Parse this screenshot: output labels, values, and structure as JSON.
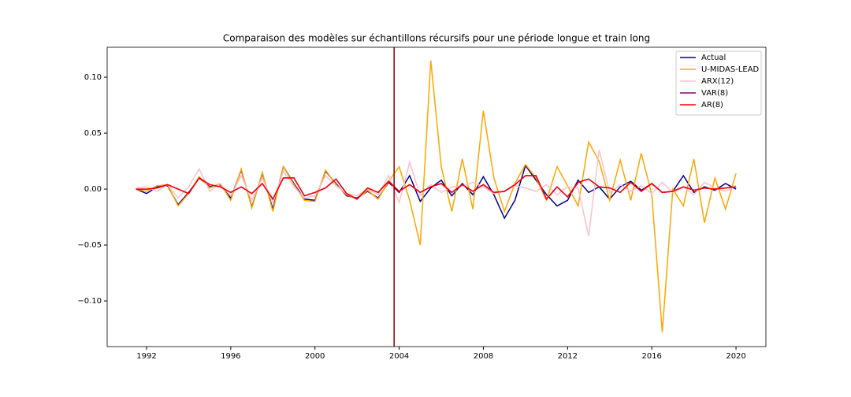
{
  "chart_data": {
    "type": "line",
    "title": "Comparaison des modèles sur échantillons récursifs pour une période longue et train long",
    "x": [
      1991.5,
      1992,
      1992.5,
      1993,
      1993.5,
      1994,
      1994.5,
      1995,
      1995.5,
      1996,
      1996.5,
      1997,
      1997.5,
      1998,
      1998.5,
      1999,
      1999.5,
      2000,
      2000.5,
      2001,
      2001.5,
      2002,
      2002.5,
      2003,
      2003.5,
      2004,
      2004.5,
      2005,
      2005.5,
      2006,
      2006.5,
      2007,
      2007.5,
      2008,
      2008.5,
      2009,
      2009.5,
      2010,
      2010.5,
      2011,
      2011.5,
      2012,
      2012.5,
      2013,
      2013.5,
      2014,
      2014.5,
      2015,
      2015.5,
      2016,
      2016.5,
      2017,
      2017.5,
      2018,
      2018.5,
      2019,
      2019.5,
      2020
    ],
    "series": [
      {
        "name": "Actual",
        "color": "#00008b",
        "values": [
          0,
          -0.004,
          0.002,
          0.003,
          -0.014,
          -0.003,
          0.01,
          0.002,
          0.004,
          -0.008,
          0.017,
          -0.016,
          0.014,
          -0.018,
          0.02,
          0.005,
          -0.009,
          -0.01,
          0.016,
          0.005,
          -0.006,
          -0.008,
          -0.002,
          -0.008,
          0.006,
          -0.003,
          0.012,
          -0.011,
          0.001,
          0.008,
          -0.006,
          0.005,
          -0.005,
          0.011,
          -0.005,
          -0.026,
          -0.01,
          0.021,
          0.008,
          -0.005,
          -0.015,
          -0.01,
          0.008,
          -0.003,
          0.002,
          -0.009,
          0.002,
          0.007,
          -0.001,
          0.005,
          -0.003,
          -0.002,
          0.012,
          -0.003,
          0.002,
          -0.001,
          0.005,
          0
        ]
      },
      {
        "name": "U-MIDAS-LEAD",
        "color": "#ffa500",
        "values": [
          0,
          -0.002,
          0.003,
          0.004,
          -0.015,
          -0.004,
          0.011,
          0.001,
          0.005,
          -0.01,
          0.018,
          -0.017,
          0.015,
          -0.02,
          0.02,
          0.004,
          -0.01,
          -0.011,
          0.017,
          0.004,
          -0.005,
          -0.009,
          -0.001,
          -0.009,
          0.007,
          0.02,
          -0.01,
          -0.05,
          0.115,
          0.02,
          -0.02,
          0.027,
          -0.018,
          0.07,
          0.01,
          -0.02,
          0.005,
          0.022,
          0.01,
          -0.01,
          0.02,
          0.003,
          -0.015,
          0.042,
          0.025,
          -0.01,
          0.026,
          -0.01,
          0.032,
          -0.005,
          -0.128,
          0,
          -0.015,
          0.027,
          -0.03,
          0.01,
          -0.018,
          0.014
        ]
      },
      {
        "name": "ARX(12)",
        "color": "#ffc0cb",
        "values": [
          0.001,
          0.002,
          -0.002,
          0.004,
          -0.008,
          0.002,
          0.018,
          -0.002,
          0.005,
          -0.006,
          0.012,
          -0.01,
          0.01,
          -0.012,
          0.016,
          0.002,
          -0.008,
          -0.006,
          0.012,
          0.003,
          -0.004,
          -0.006,
          0,
          -0.005,
          0.012,
          -0.012,
          0.024,
          -0.006,
          0.004,
          -0.003,
          0.002,
          0.003,
          0.006,
          0.002,
          -0.004,
          -0.002,
          0.003,
          0.001,
          -0.002,
          0.004,
          -0.005,
          0.002,
          0.001,
          -0.042,
          0.035,
          -0.003,
          0.004,
          -0.002,
          0.003,
          -0.004,
          0.006,
          -0.003,
          0.002,
          -0.005,
          0.006,
          0.001,
          -0.002,
          0.003
        ]
      },
      {
        "name": "VAR(8)",
        "color": "#800080",
        "values": [
          0,
          0,
          0.001,
          0.004,
          0,
          -0.004,
          0.01,
          0.004,
          0.002,
          -0.003,
          0.002,
          -0.004,
          0.005,
          -0.009,
          0.01,
          0.01,
          -0.006,
          -0.003,
          0.001,
          0.009,
          -0.004,
          -0.009,
          0.001,
          -0.003,
          0.007,
          -0.002,
          0.004,
          -0.003,
          0.002,
          0.005,
          -0.003,
          0.004,
          -0.002,
          0.004,
          -0.003,
          -0.002,
          0.004,
          0.012,
          0.012,
          -0.009,
          0.002,
          -0.007,
          0.006,
          0.009,
          0.002,
          0.001,
          -0.003,
          0.006,
          -0.002,
          0.005,
          -0.003,
          -0.002,
          0.002,
          -0.001,
          0.001,
          0,
          0.001,
          0.002
        ]
      },
      {
        "name": "AR(8)",
        "color": "#ff0000",
        "values": [
          0,
          0,
          0.001,
          0.004,
          0,
          -0.004,
          0.01,
          0.004,
          0.002,
          -0.003,
          0.002,
          -0.004,
          0.005,
          -0.009,
          0.01,
          0.01,
          -0.006,
          -0.003,
          0.001,
          0.009,
          -0.004,
          -0.009,
          0.001,
          -0.003,
          0.007,
          -0.002,
          0.004,
          -0.003,
          0.002,
          0.005,
          -0.003,
          0.004,
          -0.002,
          0.004,
          -0.003,
          -0.002,
          0.004,
          0.012,
          0.012,
          -0.009,
          0.002,
          -0.007,
          0.006,
          0.009,
          0.002,
          0.001,
          -0.003,
          0.006,
          -0.002,
          0.005,
          -0.003,
          -0.002,
          0.002,
          -0.001,
          0.001,
          0,
          0.001,
          0.002
        ]
      }
    ],
    "vline": {
      "x": 2003.76,
      "color": "#8b0000"
    },
    "xlim": [
      1990.13,
      2021.42
    ],
    "ylim": [
      -0.1408,
      0.1268
    ],
    "xticks": [
      1992,
      1996,
      2000,
      2004,
      2008,
      2012,
      2016,
      2020
    ],
    "yticks": [
      -0.1,
      -0.05,
      0,
      0.05,
      0.1
    ],
    "yticks_labels": [
      "−0.10",
      "−0.05",
      "0.00",
      "0.05",
      "0.10"
    ],
    "legend": "upper right",
    "grid": false
  }
}
